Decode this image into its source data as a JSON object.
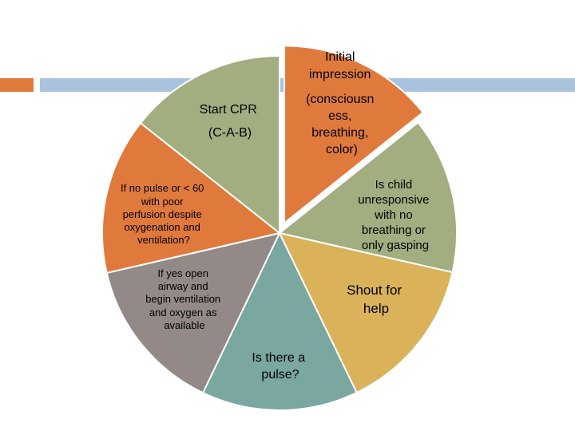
{
  "diagram": {
    "segments": [
      {
        "id": "initial-impression",
        "color": "#e07a3c",
        "label_lines": [
          "Initial",
          "impression",
          "(consciousn",
          "ess,",
          "breathing,",
          "color)"
        ]
      },
      {
        "id": "is-child-unresponsive",
        "color": "#a2ad80",
        "label_lines": [
          "Is child",
          "unresponsive",
          "with no",
          "breathing or",
          "only gasping"
        ]
      },
      {
        "id": "shout-for-help",
        "color": "#d9b25a",
        "label_lines": [
          "Shout for",
          "help"
        ]
      },
      {
        "id": "is-there-a-pulse",
        "color": "#7aa7a0",
        "label_lines": [
          "Is there a",
          "pulse?"
        ]
      },
      {
        "id": "if-yes-open-airway",
        "color": "#938987",
        "label_lines": [
          "If yes open",
          "airway and",
          "begin ventilation",
          "and oxygen as",
          "available"
        ]
      },
      {
        "id": "if-no-pulse",
        "color": "#e07a3c",
        "label_lines": [
          "If no pulse or < 60",
          "with poor",
          "perfusion despite",
          "oxygenation and",
          "ventilation?"
        ]
      },
      {
        "id": "start-cpr",
        "color": "#a2ad80",
        "label_lines": [
          "Start CPR",
          "(C-A-B)"
        ]
      }
    ]
  }
}
